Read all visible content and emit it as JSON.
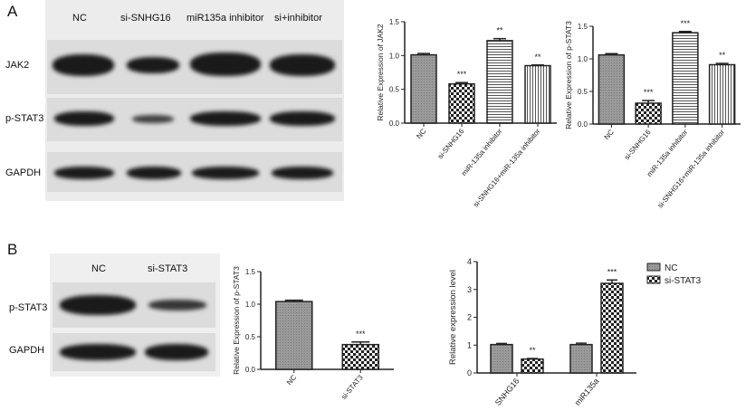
{
  "panels": {
    "a": "A",
    "b": "B"
  },
  "blot_a": {
    "lanes": [
      "NC",
      "si-SNHG16",
      "miR135a inhibitor",
      "si+inhibitor"
    ],
    "rows": [
      "JAK2",
      "p-STAT3",
      "GAPDH"
    ]
  },
  "blot_b": {
    "lanes": [
      "NC",
      "si-STAT3"
    ],
    "rows": [
      "p-STAT3",
      "GAPDH"
    ]
  },
  "chart_data": [
    {
      "type": "bar",
      "ylabel": "Relative Expression of JAK2",
      "ylim": [
        0,
        1.5
      ],
      "yticks": [
        "0.0",
        "0.5",
        "1.0",
        "1.5"
      ],
      "categories": [
        "NC",
        "si-SNHG16",
        "miR-135a inhibitor",
        "si-SNHG16+miR-135a inhibitor"
      ],
      "values": [
        1.01,
        0.58,
        1.22,
        0.85
      ],
      "errors": [
        0.02,
        0.02,
        0.03,
        0.01
      ],
      "significance": [
        "",
        "***",
        "**",
        "**"
      ],
      "patterns": [
        "gray",
        "checker",
        "hlines",
        "vlines"
      ]
    },
    {
      "type": "bar",
      "ylabel": "Relative Expression of p-STAT3",
      "ylim": [
        0,
        1.5
      ],
      "yticks": [
        "0.0",
        "0.5",
        "1.0",
        "1.5"
      ],
      "categories": [
        "NC",
        "si-SNHG16",
        "miR-135a inhibitor",
        "si-SNHG16+miR-135a inhibitor"
      ],
      "values": [
        1.06,
        0.32,
        1.4,
        0.91
      ],
      "errors": [
        0.02,
        0.04,
        0.02,
        0.02
      ],
      "significance": [
        "",
        "***",
        "***",
        "**"
      ],
      "patterns": [
        "gray",
        "checker",
        "hlines",
        "vlines"
      ]
    },
    {
      "type": "bar",
      "ylabel": "Relative Expression of p-STAT3",
      "ylim": [
        0,
        1.5
      ],
      "yticks": [
        "0.0",
        "0.5",
        "1.0",
        "1.5"
      ],
      "categories": [
        "NC",
        "si-STAT3"
      ],
      "values": [
        1.04,
        0.38
      ],
      "errors": [
        0.02,
        0.04
      ],
      "significance": [
        "",
        "***"
      ],
      "patterns": [
        "gray",
        "checker"
      ]
    },
    {
      "type": "bar",
      "ylabel": "Relative expression level",
      "ylim": [
        0,
        4
      ],
      "yticks": [
        "0",
        "1",
        "2",
        "3",
        "4"
      ],
      "categories": [
        "SNHG16",
        "miR135a"
      ],
      "series": [
        {
          "name": "NC",
          "values": [
            1.02,
            1.02
          ],
          "errors": [
            0.04,
            0.05
          ],
          "pattern": "gray"
        },
        {
          "name": "si-STAT3",
          "values": [
            0.5,
            3.22
          ],
          "errors": [
            0.02,
            0.12
          ],
          "pattern": "checker"
        }
      ],
      "significance": [
        "**",
        "***"
      ],
      "legend": "top-right"
    }
  ]
}
